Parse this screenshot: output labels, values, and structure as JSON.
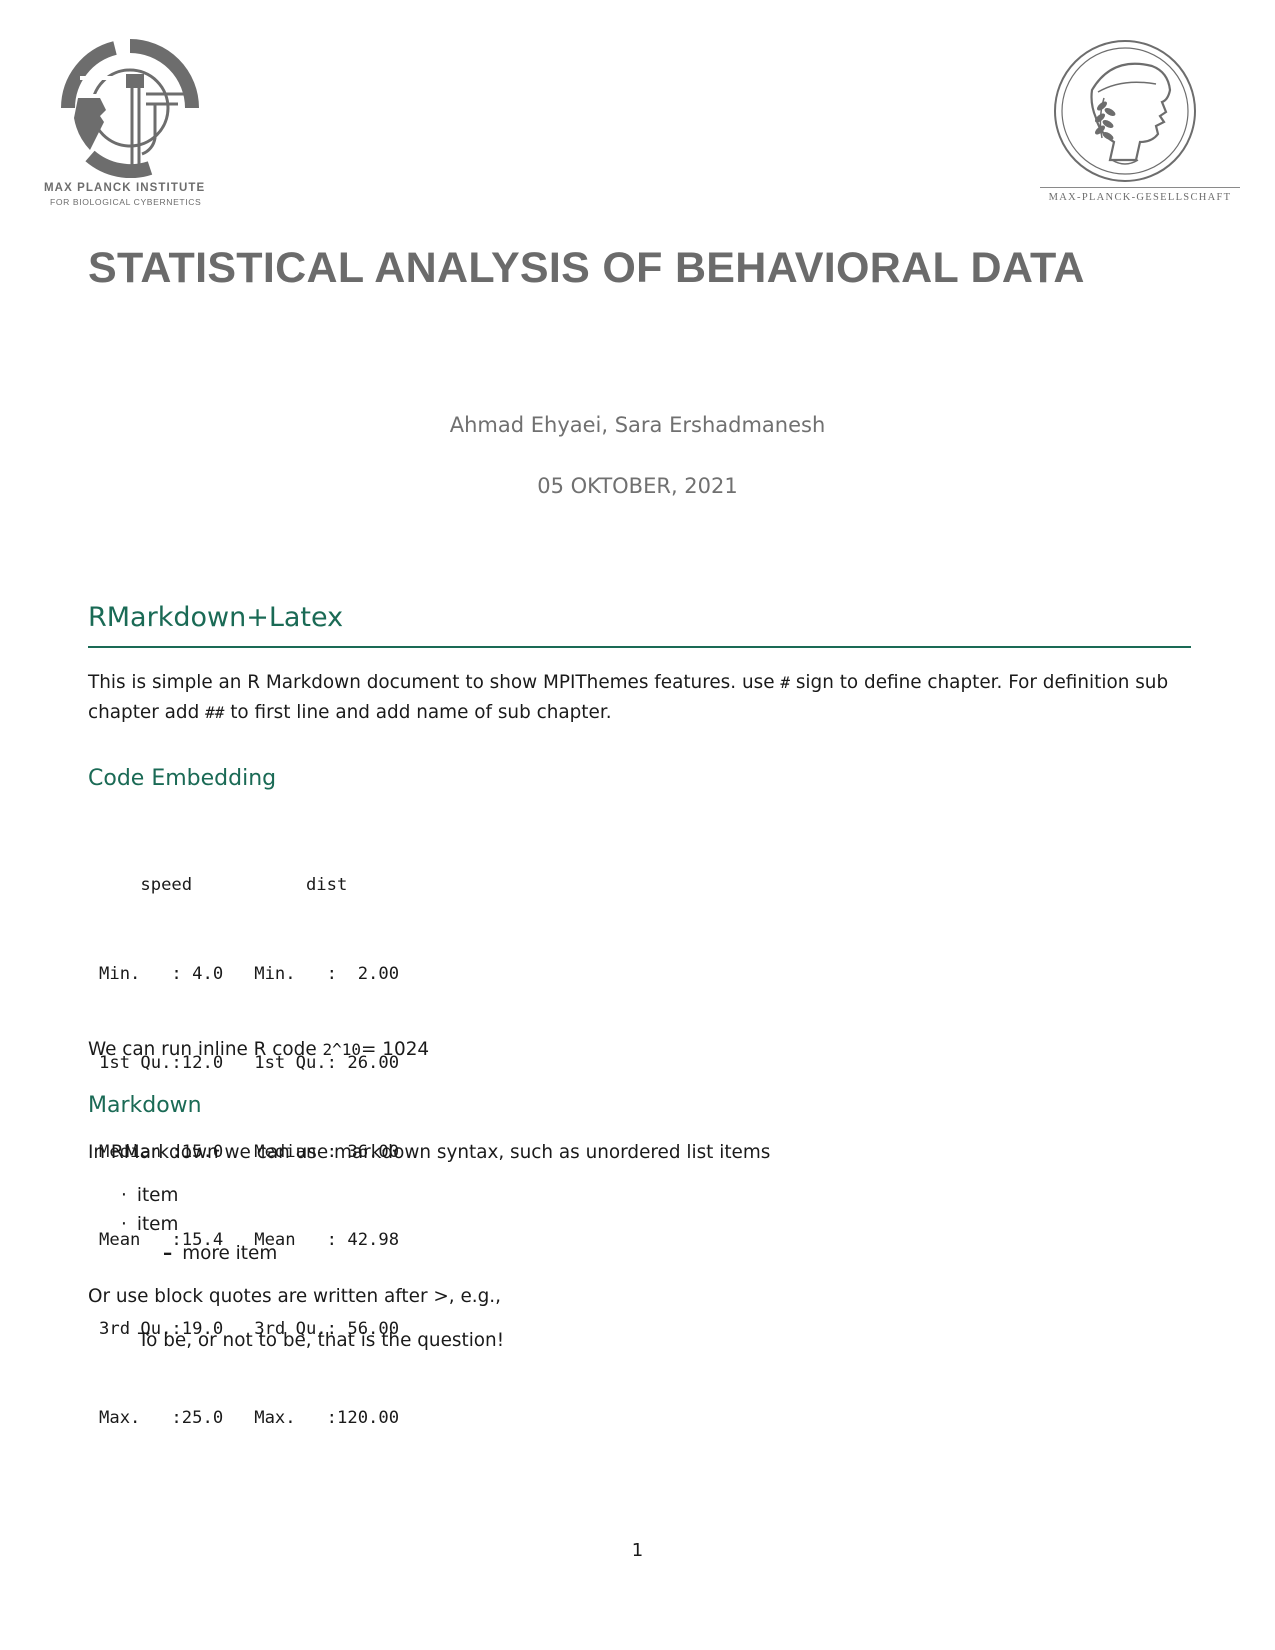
{
  "header": {
    "logo_left": {
      "line1": "MAX PLANCK INSTITUTE",
      "line2": "FOR BIOLOGICAL CYBERNETICS",
      "icon": "mpi-cybernetics-logo-icon"
    },
    "logo_right": {
      "line1": "MAX-PLANCK-GESELLSCHAFT",
      "icon": "minerva-seal-icon"
    }
  },
  "document": {
    "title": "STATISTICAL ANALYSIS OF BEHAVIORAL DATA",
    "author": "Ahmad Ehyaei, Sara Ershadmanesh",
    "date": "05 OKTOBER, 2021"
  },
  "section1": {
    "heading": "RMarkdown+Latex",
    "p1": {
      "line1_a": "This is simple an R Markdown document to show MPIThemes features.  use ",
      "line1_code": "#",
      "line1_b": " sign to define chapter.  For definition sub",
      "line2_a": "chapter add ",
      "line2_code": "##",
      "line2_b": " to first line and add name of sub chapter."
    }
  },
  "section2": {
    "heading": "Code Embedding",
    "code_lines": [
      "    speed           dist    ",
      "Min.   : 4.0   Min.   :  2.00  ",
      "1st Qu.:12.0   1st Qu.: 26.00  ",
      "Median :15.0   Median : 36.00  ",
      "Mean   :15.4   Mean   : 42.98  ",
      "3rd Qu.:19.0   3rd Qu.: 56.00  ",
      "Max.   :25.0   Max.   :120.00  "
    ],
    "inline_a": "We can run inline R code ",
    "inline_code": "2^10",
    "inline_b": "= 1024"
  },
  "section3": {
    "heading": "Markdown",
    "intro": "In RMarkdown we can use markdown syntax, such as unordered list items",
    "list": {
      "bullet_symbol": "·",
      "dash_symbol": "–",
      "item1": "item",
      "item2": "item",
      "subitem1": "more item"
    },
    "quote_intro": "Or use block quotes are written after >, e.g.,",
    "quote": "To be, or not to be, that is the question!"
  },
  "footer": {
    "page_number": "1"
  },
  "colors": {
    "heading": "#1a6a55",
    "title_gray": "#6b6b6b",
    "logo_gray": "#6d6d6d"
  }
}
